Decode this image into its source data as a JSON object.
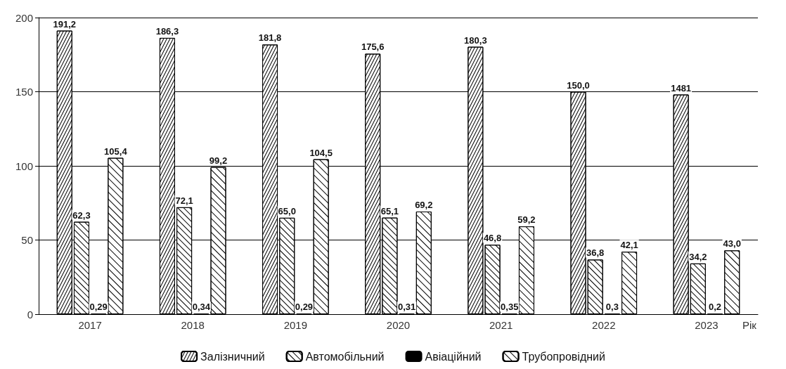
{
  "chart_data": {
    "type": "bar",
    "categories": [
      "2017",
      "2018",
      "2019",
      "2020",
      "2021",
      "2022",
      "2023"
    ],
    "xlabel": "Рік",
    "ylim": [
      0,
      200
    ],
    "yticks": [
      0,
      50,
      100,
      150,
      200
    ],
    "grid": "y",
    "legend": "bottom",
    "annotations": [
      "1481"
    ],
    "series": [
      {
        "name": "Залізничний",
        "color": "#ffffff",
        "values": [
          191.2,
          186.3,
          181.8,
          175.6,
          180.3,
          150.0,
          148.1
        ],
        "value_labels": [
          "191,2",
          "186,3",
          "181,8",
          "175,6",
          "180,3",
          "150,0",
          null
        ]
      },
      {
        "name": "Автомобільний",
        "color": "#ffffff",
        "values": [
          62.3,
          72.1,
          65.0,
          65.1,
          46.8,
          36.8,
          34.2
        ],
        "value_labels": [
          "62,3",
          "72,1",
          "65,0",
          "65,1",
          "46,8",
          "36,8",
          "34,2"
        ]
      },
      {
        "name": "Авіаційний",
        "color": "#000000",
        "values": [
          0.29,
          0.34,
          0.29,
          0.31,
          0.35,
          0.3,
          0.2
        ],
        "value_labels": [
          "0,29",
          "0,34",
          "0,29",
          "0,31",
          "0,35",
          "0,3",
          "0,2"
        ]
      },
      {
        "name": "Трубопровідний",
        "color": "#ffffff",
        "values": [
          105.4,
          99.2,
          104.5,
          69.2,
          59.2,
          42.1,
          43.0
        ],
        "value_labels": [
          "105,4",
          "99,2",
          "104,5",
          "69,2",
          "59,2",
          "42,1",
          "43,0"
        ]
      }
    ]
  }
}
